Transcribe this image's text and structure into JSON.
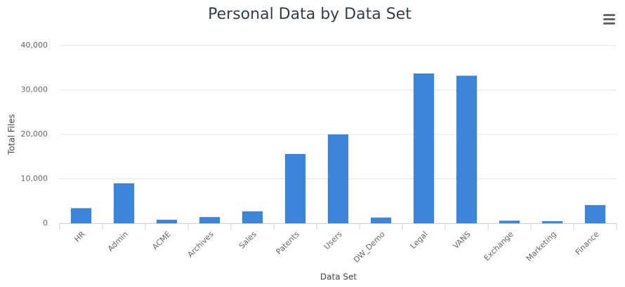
{
  "chart_data": {
    "type": "bar",
    "title": "Personal Data by Data Set",
    "x_label": "Data Set",
    "y_label": "Total Files",
    "categories": [
      "HR",
      "Admin",
      "ACME",
      "Archives",
      "Sales",
      "Patents",
      "Users",
      "DW_Demo",
      "Legal",
      "VANS",
      "Exchange",
      "Marketing",
      "Finance"
    ],
    "values": [
      3400,
      9000,
      800,
      1400,
      2700,
      15600,
      20000,
      1300,
      33700,
      33200,
      600,
      500,
      4100
    ],
    "color": "#3d85d8",
    "ylim": [
      0,
      40000
    ],
    "yticks": [
      0,
      {
        "value": 10000,
        "label": "10,000"
      },
      {
        "value": 20000,
        "label": "20,000"
      },
      {
        "value": 30000,
        "label": "30,000"
      },
      {
        "value": 40000,
        "label": "40,000"
      }
    ],
    "grid": true
  }
}
